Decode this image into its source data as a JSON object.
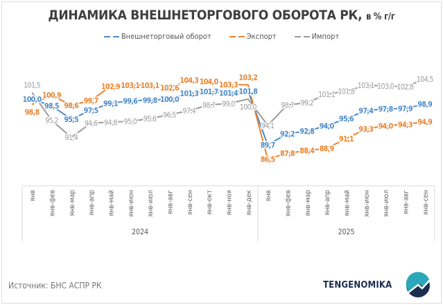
{
  "chart_data": {
    "type": "line",
    "title": "ДИНАМИКА ВНЕШНЕТОРГОВОГО ОБОРОТА РК,",
    "title_unit": "в % г/г",
    "groups": [
      {
        "label": "2024",
        "categories": [
          "янв",
          "янв-фев",
          "янв-мар",
          "янв-апр",
          "янв-май",
          "янв-июн",
          "янв-июл",
          "янв-авг",
          "янв-сен",
          "янв-окт",
          "янв-ноя",
          "янв-дек"
        ]
      },
      {
        "label": "2025",
        "categories": [
          "янв",
          "янв-фев",
          "янв-мар",
          "янв-апр",
          "янв-май",
          "янв-июн",
          "янв-июл",
          "янв-авг",
          "янв-сен"
        ]
      }
    ],
    "legend_position": "top",
    "grid": false,
    "series": [
      {
        "name": "Внешнеторговый оборот",
        "color": "#4a89c8",
        "values": [
          100.0,
          98.5,
          95.5,
          97.5,
          99.1,
          99.6,
          99.8,
          100.0,
          101.3,
          101.7,
          101.4,
          101.8,
          89.7,
          92.2,
          92.8,
          94.0,
          95.6,
          97.4,
          97.8,
          97.9,
          98.9
        ]
      },
      {
        "name": "Экспорт",
        "color": "#e8822d",
        "values": [
          98.8,
          100.9,
          98.6,
          99.7,
          102.9,
          103.1,
          103.1,
          102.6,
          104.3,
          104.0,
          103.3,
          103.2,
          86.5,
          87.8,
          88.4,
          88.9,
          91.1,
          93.3,
          94.0,
          94.3,
          94.9
        ]
      },
      {
        "name": "Импорт",
        "color": "#9b9b9b",
        "values": [
          101.5,
          95.2,
          91.4,
          94.6,
          94.8,
          95.0,
          95.6,
          96.5,
          97.4,
          98.7,
          99.0,
          100.0,
          94.1,
          98.7,
          99.2,
          101.1,
          101.8,
          103.1,
          103.0,
          102.8,
          104.5
        ]
      }
    ]
  },
  "footer": {
    "source": "Источник:  БНС  АСПР РК",
    "brand": "TENGENOMIKA"
  }
}
